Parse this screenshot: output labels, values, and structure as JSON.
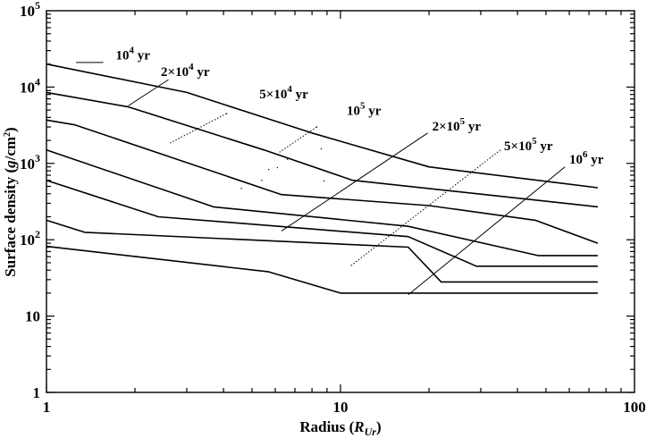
{
  "chart_data": {
    "type": "line",
    "x_scale": "log",
    "y_scale": "log",
    "xlim": [
      1,
      100
    ],
    "ylim": [
      1,
      100000
    ],
    "grid": false,
    "legend": "none",
    "title": "",
    "xlabel": "Radius (R_Ur)",
    "xlabel_parts": {
      "main": "Radius (",
      "sym": "R",
      "sub": "Ur",
      "close": ")"
    },
    "ylabel": "Surface density (g/cm²)",
    "ylabel_parts": {
      "pre": "Surface density (",
      "g": "g",
      "unit": "/cm",
      "sup": "2",
      "close": ")"
    },
    "x_ticks": [
      {
        "value": 1,
        "label": "1"
      },
      {
        "value": 10,
        "label": "10"
      },
      {
        "value": 100,
        "label": "100"
      }
    ],
    "y_ticks": [
      {
        "value": 1,
        "base": "1",
        "exp": ""
      },
      {
        "value": 10,
        "base": "10",
        "exp": ""
      },
      {
        "value": 100,
        "base": "10",
        "exp": "2"
      },
      {
        "value": 1000,
        "base": "10",
        "exp": "3"
      },
      {
        "value": 10000,
        "base": "10",
        "exp": "4"
      },
      {
        "value": 100000,
        "base": "10",
        "exp": "5"
      }
    ],
    "series": [
      {
        "x": [
          1,
          3.0,
          8,
          20,
          75
        ],
        "y": [
          20000,
          8500,
          2500,
          900,
          480
        ]
      },
      {
        "x": [
          1,
          1.9,
          5.5,
          11,
          75
        ],
        "y": [
          8500,
          5500,
          1500,
          600,
          270
        ]
      },
      {
        "x": [
          1,
          1.25,
          6.3,
          20,
          46,
          75
        ],
        "y": [
          3700,
          3200,
          390,
          280,
          180,
          90
        ]
      },
      {
        "x": [
          1,
          3.7,
          17,
          47,
          75
        ],
        "y": [
          1500,
          270,
          150,
          62,
          62
        ]
      },
      {
        "x": [
          1,
          2.4,
          17,
          29,
          75
        ],
        "y": [
          600,
          200,
          110,
          45,
          45
        ]
      },
      {
        "x": [
          1,
          1.35,
          17,
          22,
          75
        ],
        "y": [
          180,
          125,
          80,
          28,
          28
        ]
      },
      {
        "x": [
          1,
          5.7,
          10,
          75
        ],
        "y": [
          82,
          38,
          20,
          20
        ]
      }
    ],
    "annotations": [
      {
        "label": "10",
        "exp": "4",
        "unit": " yr",
        "leader": "solid",
        "text_x": 1.72,
        "text_y": 23000,
        "leader_from": [
          1.26,
          21000
        ],
        "leader_to": [
          1.56,
          21000
        ]
      },
      {
        "label": "2×10",
        "exp": "4",
        "unit": " yr",
        "leader": "solid",
        "text_x": 2.45,
        "text_y": 14000,
        "leader_from": [
          2.6,
          12500
        ],
        "leader_to": [
          1.9,
          5700
        ]
      },
      {
        "label": "5×10",
        "exp": "4",
        "unit": " yr",
        "leader": "dotted",
        "text_x": 5.3,
        "text_y": 7100,
        "leader_from": [
          4.1,
          4500
        ],
        "leader_to": [
          2.6,
          1800
        ]
      },
      {
        "label": "10",
        "exp": "5",
        "unit": " yr",
        "leader": "dotted",
        "text_x": 10.5,
        "text_y": 4300,
        "leader_from": [
          8.3,
          3000
        ],
        "leader_to": [
          6.2,
          1400
        ]
      },
      {
        "label": "2×10",
        "exp": "5",
        "unit": " yr",
        "leader": "solid",
        "text_x": 20.5,
        "text_y": 2700,
        "leader_from": [
          19.8,
          2500
        ],
        "leader_to": [
          6.3,
          130
        ]
      },
      {
        "label": "5×10",
        "exp": "5",
        "unit": " yr",
        "leader": "dotted",
        "text_x": 36,
        "text_y": 1500,
        "leader_from": [
          35,
          1500
        ],
        "leader_to": [
          10.8,
          45
        ]
      },
      {
        "label": "10",
        "exp": "6",
        "unit": " yr",
        "leader": "solid",
        "text_x": 60,
        "text_y": 1000,
        "leader_from": [
          58,
          900
        ],
        "leader_to": [
          17,
          19
        ]
      }
    ],
    "stray_marks": [
      [
        4.1,
        4500
      ],
      [
        8.3,
        3000
      ],
      [
        8.6,
        1550
      ],
      [
        5.7,
        830
      ],
      [
        6.1,
        880
      ],
      [
        6.6,
        1130
      ],
      [
        8.8,
        590
      ],
      [
        4.6,
        470
      ],
      [
        5.4,
        600
      ]
    ]
  }
}
